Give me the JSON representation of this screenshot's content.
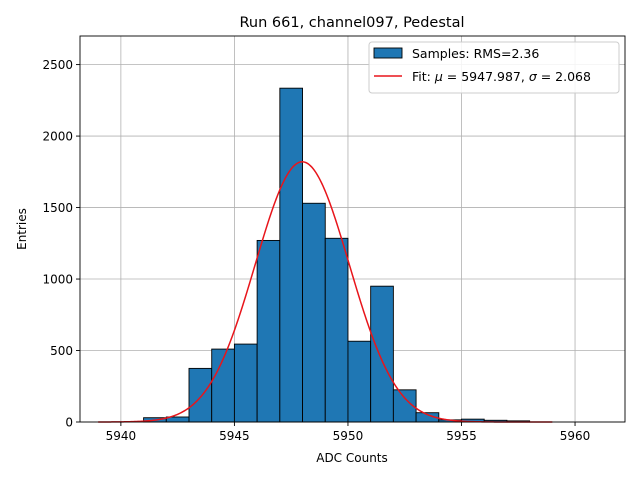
{
  "chart_data": {
    "type": "bar",
    "title": "Run 661, channel097, Pedestal",
    "xlabel": "ADC Counts",
    "ylabel": "Entries",
    "xlim": [
      5938.2,
      5962.2
    ],
    "ylim": [
      0,
      2700
    ],
    "xticks": [
      5940,
      5945,
      5950,
      5955,
      5960
    ],
    "yticks": [
      0,
      500,
      1000,
      1500,
      2000,
      2500
    ],
    "grid": true,
    "legend_position": "top-right",
    "legend": {
      "hist_label": "Samples: RMS=2.36",
      "fit_label_prefix": "Fit: ",
      "fit_mu_symbol": "μ",
      "fit_mu_text": " = 5947.987, ",
      "fit_sigma_symbol": "σ",
      "fit_sigma_text": " = 2.068"
    },
    "histogram": {
      "bin_width": 1,
      "bin_edges_start": [
        5941,
        5942,
        5943,
        5944,
        5945,
        5946,
        5947,
        5948,
        5949,
        5950,
        5951,
        5952,
        5953,
        5954,
        5955,
        5956,
        5957
      ],
      "counts": [
        30,
        35,
        375,
        510,
        545,
        1270,
        2335,
        1530,
        1285,
        565,
        950,
        225,
        65,
        15,
        20,
        12,
        8
      ],
      "color": "#1f77b4",
      "edge_color": "#000000"
    },
    "fit": {
      "type": "gaussian",
      "mu": 5947.987,
      "sigma": 2.068,
      "amplitude": 1820,
      "x_range": [
        5939,
        5959
      ],
      "color": "#e8151b"
    }
  }
}
